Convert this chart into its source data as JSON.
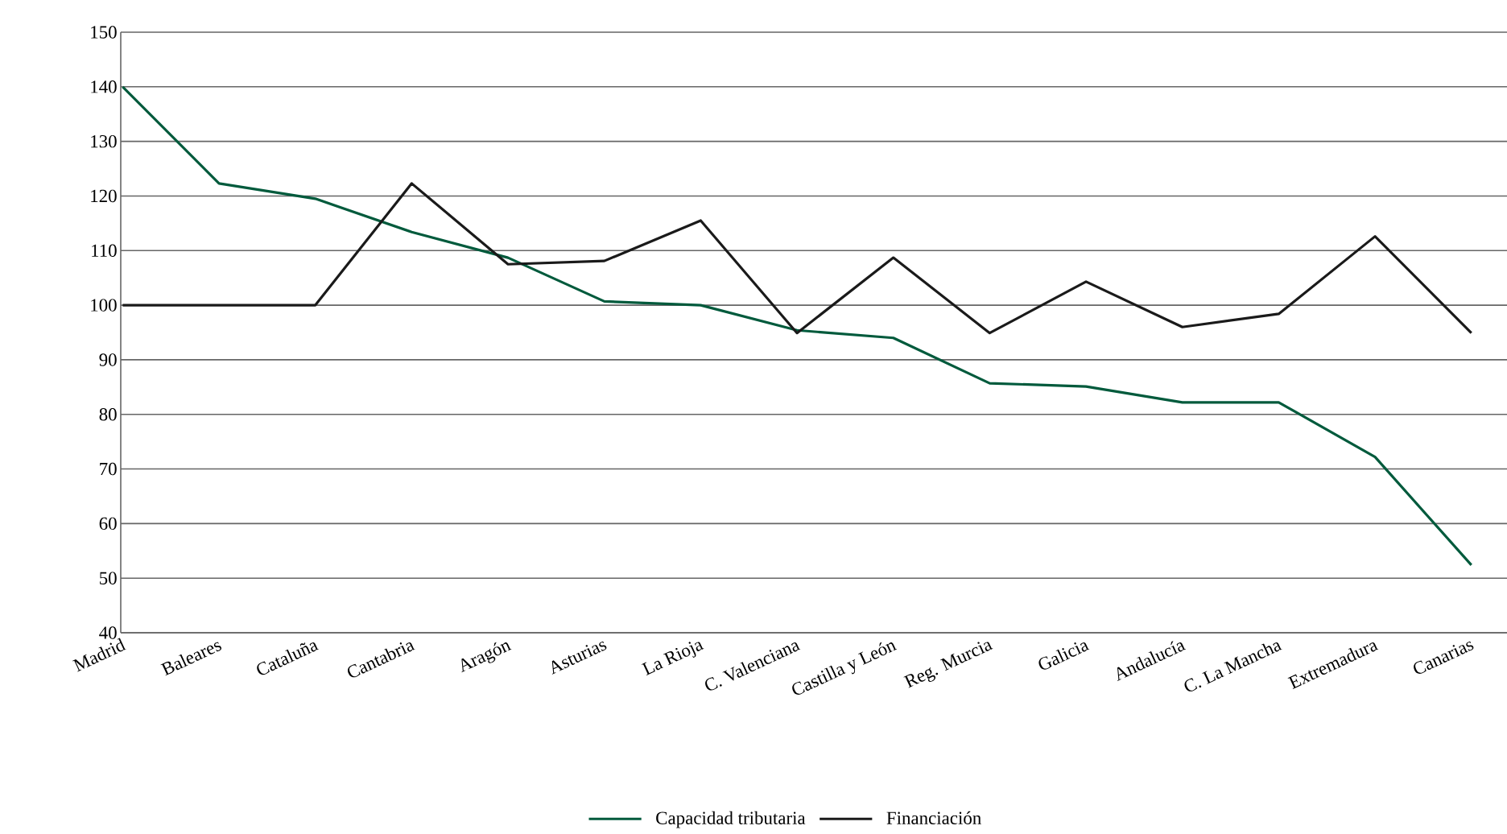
{
  "chart_data": {
    "type": "line",
    "categories": [
      "Madrid",
      "Baleares",
      "Cataluña",
      "Cantabria",
      "Aragón",
      "Asturias",
      "La Rioja",
      "C. Valenciana",
      "Castilla y León",
      "Reg. Murcia",
      "Galicia",
      "Andalucía",
      "C. La Mancha",
      "Extremadura",
      "Canarias"
    ],
    "series": [
      {
        "name": "Capacidad tributaria",
        "color": "#005a3c",
        "values": [
          140,
          122.3,
          119.5,
          113.4,
          108.7,
          100.7,
          100,
          95.4,
          94,
          85.7,
          85.1,
          82.2,
          82.2,
          72.2,
          52.4
        ]
      },
      {
        "name": "Financiación",
        "color": "#1a1a1a",
        "values": [
          100,
          100,
          100,
          122.3,
          107.5,
          108.1,
          115.5,
          94.9,
          108.7,
          94.9,
          104.3,
          96,
          98.4,
          112.6,
          94.9
        ]
      }
    ],
    "ylim": [
      40,
      150
    ],
    "yticks": [
      40,
      50,
      60,
      70,
      80,
      90,
      100,
      110,
      120,
      130,
      140,
      150
    ],
    "grid": "y",
    "legend": "bottom"
  }
}
